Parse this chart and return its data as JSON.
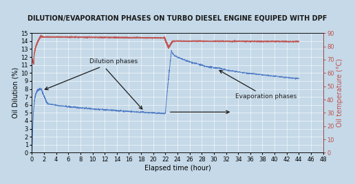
{
  "title": "DILUTION/EVAPORATION PHASES ON TURBO DIESEL ENGINE EQUIPED WITH DPF",
  "xlabel": "Elapsed time (hour)",
  "ylabel_left": "Oil Dilution (%)",
  "ylabel_right": "Oil temperature (°C)",
  "xlim": [
    0,
    48
  ],
  "ylim_left": [
    0,
    15
  ],
  "ylim_right": [
    0,
    90
  ],
  "xticks": [
    0,
    2,
    4,
    6,
    8,
    10,
    12,
    14,
    16,
    18,
    20,
    22,
    24,
    26,
    28,
    30,
    32,
    34,
    36,
    38,
    40,
    42,
    44,
    46,
    48
  ],
  "yticks_left": [
    0,
    1,
    2,
    3,
    4,
    5,
    6,
    7,
    8,
    9,
    10,
    11,
    12,
    13,
    14,
    15
  ],
  "yticks_right": [
    0,
    10,
    20,
    30,
    40,
    50,
    60,
    70,
    80,
    90
  ],
  "blue_color": "#4472C4",
  "red_color": "#C0504D",
  "bg_color": "#C5D9E8",
  "annotation_color": "#1A1A1A",
  "title_fontsize": 7.0,
  "label_fontsize": 7.0,
  "tick_fontsize": 6.0
}
